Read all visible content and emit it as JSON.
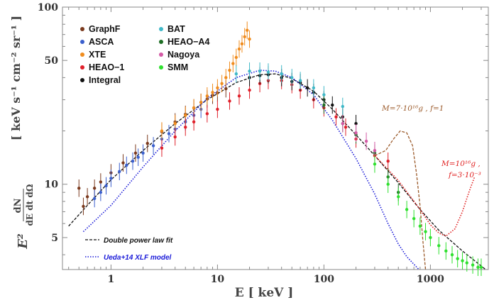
{
  "chart_data": {
    "type": "scatter",
    "log_x": true,
    "log_y": true,
    "xlim": [
      0.35,
      3500
    ],
    "ylim": [
      3.3,
      100
    ],
    "x_ticks": [
      1,
      10,
      100,
      1000
    ],
    "x_tick_labels": [
      "1",
      "10",
      "100",
      "1000"
    ],
    "y_ticks": [
      5,
      10,
      50,
      100
    ],
    "y_tick_labels": [
      "5",
      "10",
      "50",
      "100"
    ],
    "xlabel": "E   [ keV ]",
    "ylabel_units": "[ keV s⁻¹ cm⁻² sr⁻¹ ]",
    "ylabel_expr": "E² dN / dE dt dΩ",
    "legend_position": "top-left",
    "series": [
      {
        "name": "GraphF",
        "color": "#7b3a1e",
        "x": [
          0.5,
          0.55,
          0.6,
          0.7,
          0.8,
          1.0,
          1.3,
          1.7,
          2.2,
          3,
          4,
          5,
          6,
          7,
          8,
          9,
          10,
          12
        ],
        "y": [
          9.5,
          7.5,
          8.5,
          9.5,
          10.3,
          11.6,
          13.2,
          15.0,
          17.0,
          19.8,
          22.5,
          24.8,
          27.0,
          29.0,
          30.3,
          31.8,
          32.8,
          34.6
        ]
      },
      {
        "name": "ASCA",
        "color": "#3a5fcd",
        "x": [
          0.7,
          0.8,
          0.9,
          1.0,
          1.2,
          1.4,
          1.6,
          1.8,
          2.0,
          2.5,
          3,
          3.5,
          4,
          5,
          6,
          7
        ],
        "y": [
          8.3,
          9.0,
          9.8,
          10.8,
          11.8,
          12.8,
          13.5,
          14.2,
          15.0,
          16.5,
          18.0,
          19.3,
          20.5,
          22.5,
          24.5,
          26.5
        ]
      },
      {
        "name": "XTE",
        "color": "#f08c1e",
        "x": [
          3,
          4,
          5,
          6,
          7,
          8,
          9,
          10,
          11,
          12,
          13,
          14,
          15,
          16,
          17,
          18,
          19,
          20
        ],
        "y": [
          20,
          22,
          24.5,
          27,
          29,
          31.5,
          33,
          35,
          37,
          40,
          44,
          48,
          52,
          58,
          62,
          68,
          74,
          66
        ]
      },
      {
        "name": "HEAO−1",
        "color": "#e0202a",
        "x": [
          3,
          4,
          5,
          6,
          8,
          10,
          13,
          16,
          20,
          25,
          30,
          40,
          50,
          60,
          80,
          100,
          130,
          160,
          200,
          300,
          400
        ],
        "y": [
          16.0,
          18.5,
          21.0,
          22.5,
          25.0,
          26.5,
          29.5,
          31.5,
          34.0,
          37.0,
          38.5,
          38.5,
          36.5,
          34.0,
          30.0,
          27.0,
          24.0,
          21.0,
          18.0,
          14.5,
          13.5
        ]
      },
      {
        "name": "Integral",
        "color": "#111111",
        "x": [
          20,
          25,
          30,
          40,
          50,
          60,
          70,
          80,
          100,
          120,
          150,
          200
        ],
        "y": [
          40.0,
          41.0,
          41.5,
          40.0,
          38.0,
          37.5,
          35.0,
          33.0,
          30.0,
          28.0,
          24.0,
          22.0
        ]
      },
      {
        "name": "BAT",
        "color": "#3fb8c8",
        "x": [
          15,
          20,
          25,
          30,
          40,
          50,
          60,
          80,
          100,
          150
        ],
        "y": [
          42.0,
          43.5,
          43.5,
          43.0,
          42.0,
          40.0,
          38.5,
          35.0,
          32.0,
          27.5
        ]
      },
      {
        "name": "HEAO−A4",
        "color": "#1e6e24",
        "x": [
          100,
          150,
          200,
          300,
          400,
          500
        ],
        "y": [
          28.0,
          22.0,
          19.0,
          15.0,
          11.0,
          9.0
        ]
      },
      {
        "name": "Nagoya",
        "color": "#d45aa6",
        "x": [
          150,
          200,
          250,
          300
        ],
        "y": [
          22.0,
          19.5,
          17.5,
          15.5
        ]
      },
      {
        "name": "SMM",
        "color": "#2ee02e",
        "x": [
          300,
          400,
          500,
          600,
          700,
          800,
          900,
          1000,
          1200,
          1400,
          1600,
          1800,
          2000,
          2200,
          2500,
          2800,
          3000
        ],
        "y": [
          13.0,
          10.0,
          8.5,
          7.2,
          6.4,
          5.8,
          5.4,
          5.0,
          4.5,
          4.2,
          4.0,
          3.8,
          3.7,
          3.6,
          3.5,
          3.4,
          3.4
        ]
      }
    ],
    "models": [
      {
        "name": "Double power law fit",
        "color": "#111111",
        "style": "dashed",
        "x": [
          0.4,
          0.6,
          1,
          2,
          4,
          8,
          15,
          25,
          35,
          50,
          80,
          120,
          200,
          300,
          500,
          800,
          1200,
          2000,
          3300
        ],
        "y": [
          5.8,
          7.6,
          10.6,
          15.5,
          22.0,
          30.0,
          37.5,
          41.5,
          42.0,
          39.5,
          33.5,
          26.5,
          19.0,
          14.5,
          10.2,
          7.2,
          5.5,
          4.2,
          3.3
        ]
      },
      {
        "name": "Ueda+14 XLF model",
        "color": "#1a1ad8",
        "style": "dotted",
        "x": [
          0.55,
          1,
          2,
          4,
          8,
          15,
          25,
          35,
          50,
          80,
          120,
          200,
          300,
          400,
          500,
          600,
          780
        ],
        "y": [
          5.4,
          7.6,
          12.5,
          20.0,
          30.5,
          40.0,
          44.0,
          43.5,
          40.0,
          32.0,
          23.0,
          14.0,
          8.8,
          6.0,
          4.6,
          3.9,
          3.3
        ]
      },
      {
        "name": "",
        "color": "#9b5a2a",
        "style": "dashed",
        "x": [
          300,
          380,
          450,
          520,
          600,
          680,
          740,
          800,
          850,
          900
        ],
        "y": [
          14.5,
          15.5,
          18.0,
          20.0,
          19.5,
          16.5,
          11.5,
          7.5,
          4.8,
          3.3
        ]
      },
      {
        "name": "",
        "color": "#e02020",
        "style": "dotted",
        "x": [
          300,
          500,
          800,
          1000,
          1200,
          1400,
          1700,
          2000,
          2300,
          2600
        ],
        "y": [
          14.5,
          10.5,
          7.2,
          5.9,
          5.3,
          5.1,
          5.6,
          7.0,
          9.0,
          11.0
        ]
      }
    ],
    "annotations": [
      {
        "text": "M=7·10¹⁶g , f=1",
        "color": "#9b5a2a"
      },
      {
        "text": "M=10¹⁶g ,",
        "color": "#e02020"
      },
      {
        "text": "f=3·10⁻³",
        "color": "#e02020"
      }
    ]
  }
}
